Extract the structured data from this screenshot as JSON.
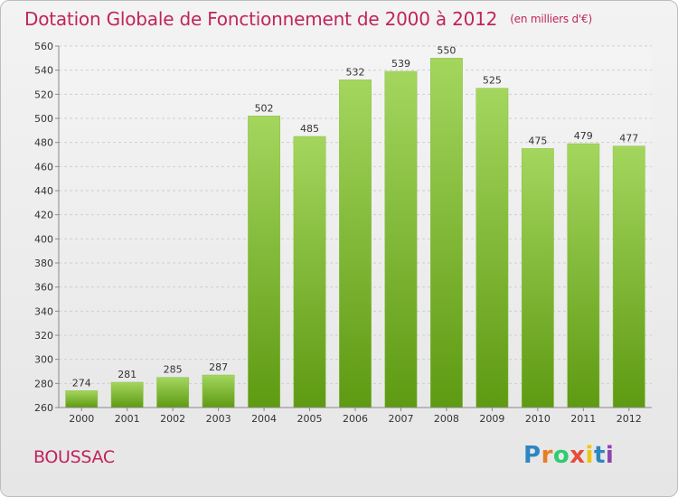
{
  "title": "Dotation Globale de Fonctionnement de 2000 à 2012",
  "subtitle": "(en milliers d'€)",
  "commune": "BOUSSAC",
  "logo": {
    "letters": [
      "P",
      "r",
      "o",
      "x",
      "i",
      "t",
      "i"
    ],
    "colors": [
      "#2e86c1",
      "#e67e22",
      "#2ecc71",
      "#e74c3c",
      "#f1c40f",
      "#2e86c1",
      "#8e44ad"
    ]
  },
  "colors": {
    "accent": "#c0245c",
    "bar_light": "#a4d65e",
    "bar_dark": "#5e9a12"
  },
  "chart_data": {
    "type": "bar",
    "categories": [
      "2000",
      "2001",
      "2002",
      "2003",
      "2004",
      "2005",
      "2006",
      "2007",
      "2008",
      "2009",
      "2010",
      "2011",
      "2012"
    ],
    "values": [
      274,
      281,
      285,
      287,
      502,
      485,
      532,
      539,
      550,
      525,
      475,
      479,
      477
    ],
    "title": "Dotation Globale de Fonctionnement de 2000 à 2012",
    "subtitle": "(en milliers d'€)",
    "xlabel": "",
    "ylabel": "",
    "ylim": [
      260,
      560
    ],
    "yticks": [
      260,
      280,
      300,
      320,
      340,
      360,
      380,
      400,
      420,
      440,
      460,
      480,
      500,
      520,
      540,
      560
    ],
    "grid": true,
    "legend": "none"
  }
}
